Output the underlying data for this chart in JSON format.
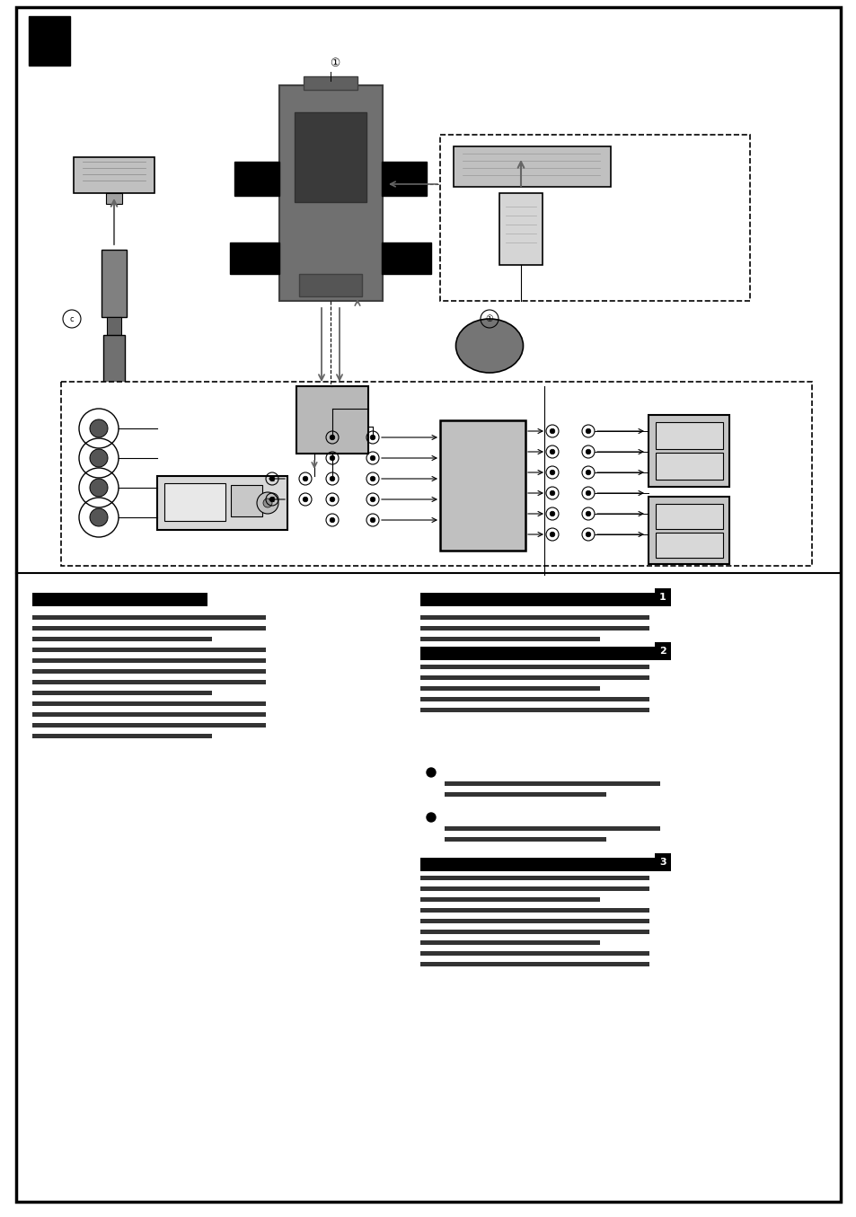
{
  "bg_color": "#ffffff",
  "page_width": 9.54,
  "page_height": 13.55,
  "dpi": 100
}
